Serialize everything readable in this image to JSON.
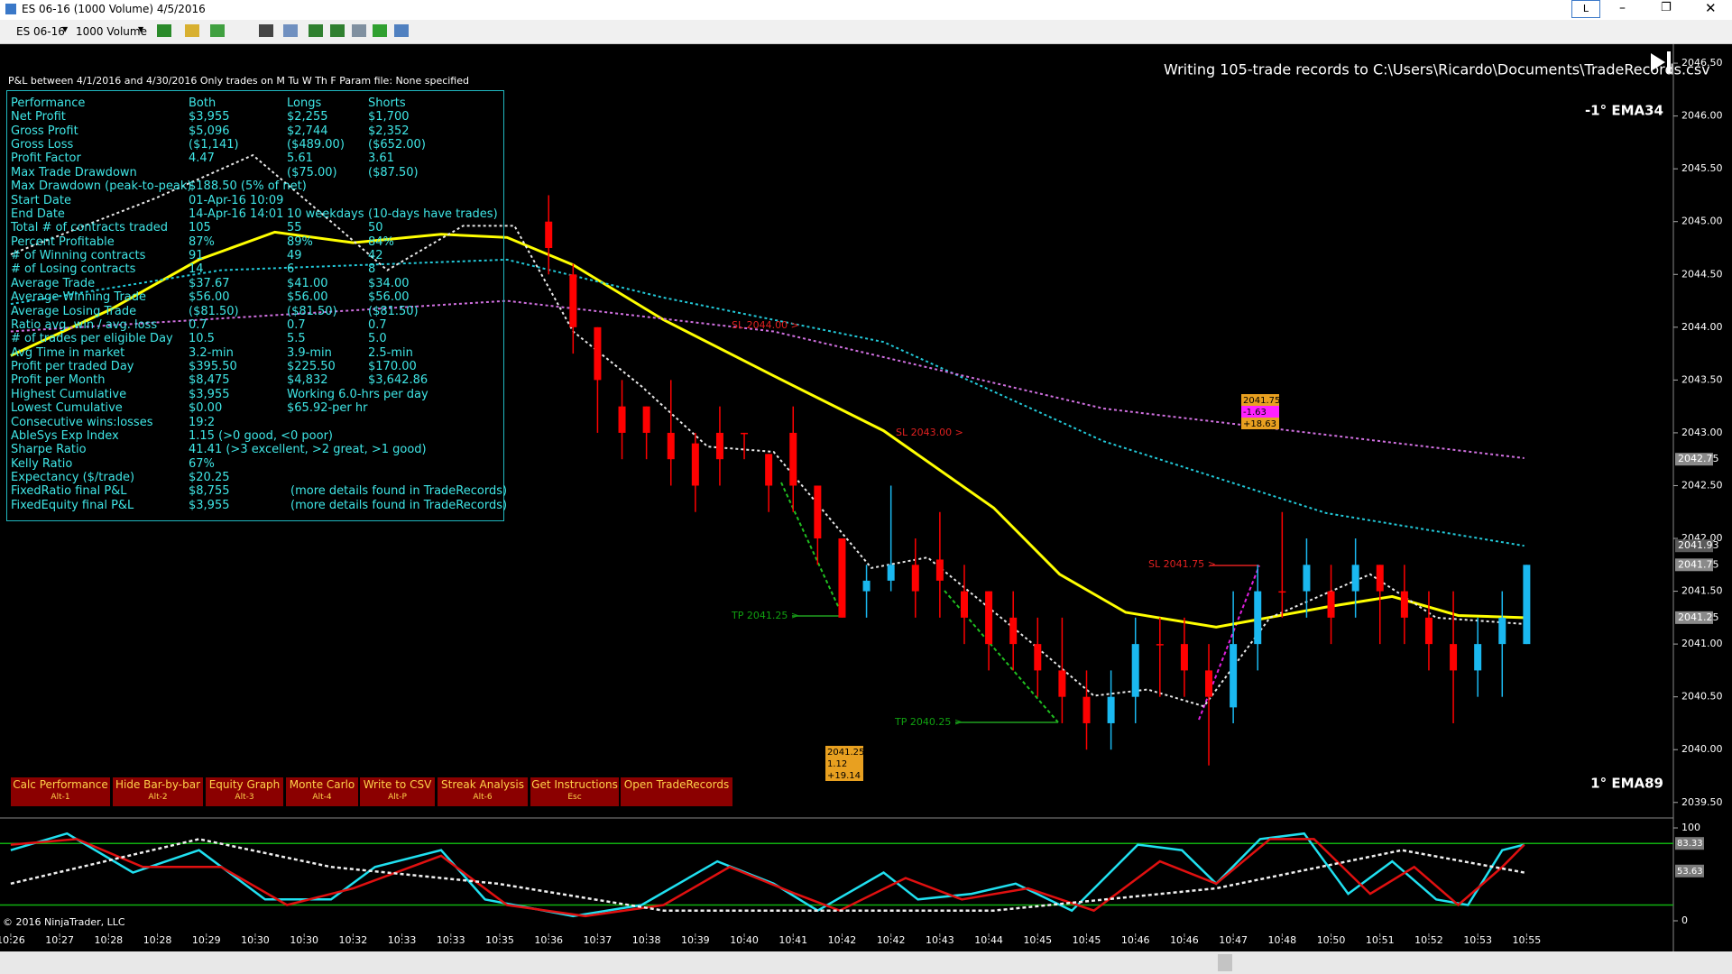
{
  "window": {
    "title": "ES 06-16 (1000 Volume)  4/5/2016",
    "instrument": "ES 06-16",
    "interval": "1000 Volume",
    "button": "L"
  },
  "header": "P&L between 4/1/2016 and 4/30/2016  Only trades on M Tu W Th F   Param file: None specified",
  "message": "Writing 105-trade records to C:\\Users\\Ricardo\\Documents\\TradeRecords.csv",
  "copyright": "© 2016 NinjaTrader, LLC",
  "table": {
    "rows": [
      [
        "Performance",
        "Both",
        "Longs",
        "Shorts"
      ],
      [
        "Net Profit",
        "$3,955",
        "$2,255",
        "$1,700"
      ],
      [
        "Gross Profit",
        "$5,096",
        "$2,744",
        "$2,352"
      ],
      [
        "Gross Loss",
        "($1,141)",
        "($489.00)",
        "($652.00)"
      ],
      [
        "Profit Factor",
        "4.47",
        "5.61",
        "3.61"
      ],
      [
        "Max Trade Drawdown",
        null,
        "($75.00)",
        "($87.50)"
      ],
      [
        "Max Drawdown (peak-to-peak)",
        "$188.50 (5% of net)"
      ],
      [
        "Start Date",
        "01-Apr-16 10:09"
      ],
      [
        "End Date",
        "14-Apr-16 14:01",
        "10 weekdays",
        "(10-days have trades)"
      ],
      [
        "Total # of contracts traded",
        "105",
        "55",
        "50"
      ],
      [
        "Percent Profitable",
        "87%",
        "89%",
        "84%"
      ],
      [
        "# of Winning contracts",
        "91",
        "49",
        "42"
      ],
      [
        "# of Losing contracts",
        "14",
        "6",
        "8"
      ],
      [
        "Average Trade",
        "$37.67",
        "$41.00",
        "$34.00"
      ],
      [
        "Average Winning Trade",
        "$56.00",
        "$56.00",
        "$56.00"
      ],
      [
        "Average Losing Trade",
        "($81.50)",
        "($81.50)",
        "($81.50)"
      ],
      [
        "Ratio avg. win / avg. loss",
        "0.7",
        "0.7",
        "0.7"
      ],
      [
        "# of trades per eligible Day",
        "10.5",
        "5.5",
        "5.0"
      ],
      [
        "Avg Time in market",
        "3.2-min",
        "3.9-min",
        "2.5-min"
      ],
      [
        "Profit per traded Day",
        "$395.50",
        "$225.50",
        "$170.00"
      ],
      [
        "Profit per Month",
        "$8,475",
        "$4,832",
        "$3,642.86"
      ],
      [
        "Highest Cumulative",
        "$3,955",
        "Working 6.0-hrs per day"
      ],
      [
        "Lowest Cumulative",
        "$0.00",
        "$65.92-per hr"
      ],
      [
        "Consecutive wins:losses",
        "19:2"
      ],
      [
        "AbleSys Exp Index",
        "1.15 (>0 good, <0 poor)"
      ],
      [
        "Sharpe Ratio",
        "41.41 (>3 excellent, >2 great, >1 good)"
      ],
      [
        "Kelly Ratio",
        "67%"
      ],
      [
        "Expectancy ($/trade)",
        "$20.25"
      ],
      [
        "FixedRatio final P&L",
        "$8,755",
        "(more details found in TradeRecords)"
      ],
      [
        "FixedEquity final P&L",
        "$3,955",
        "(more details found in TradeRecords)"
      ]
    ]
  },
  "buttons": [
    {
      "label": "Calc Performance",
      "shortcut": "Alt-1"
    },
    {
      "label": "Hide Bar-by-bar",
      "shortcut": "Alt-2"
    },
    {
      "label": "Equity Graph",
      "shortcut": "Alt-3"
    },
    {
      "label": "Monte Carlo",
      "shortcut": "Alt-4"
    },
    {
      "label": "Write to CSV",
      "shortcut": "Alt-P"
    },
    {
      "label": "Streak Analysis",
      "shortcut": "Alt-6"
    },
    {
      "label": "Get Instructions",
      "shortcut": "Esc"
    },
    {
      "label": "Open TradeRecords"
    }
  ],
  "annotations": {
    "ema_top": "-1° EMA34",
    "ema_bottom": "1° EMA89",
    "orders": [
      "SL 2044.00 >",
      "SL 2043.00 >",
      "SL 2041.75 >",
      "TP 2041.25 >",
      "TP 2040.25 >"
    ],
    "box_exit": [
      "2041.75",
      "-1.63",
      "+18.63"
    ],
    "box_entry": [
      "2041.25",
      "1.12",
      "+19.14"
    ]
  },
  "chart_data": {
    "type": "candlestick",
    "xlim": [
      -22.44,
      46.0
    ],
    "xticks": [
      {
        "value": -22,
        "label": "10:26"
      },
      {
        "value": -20,
        "label": "10:27"
      },
      {
        "value": -18,
        "label": "10:28"
      },
      {
        "value": -16,
        "label": "10:28"
      },
      {
        "value": -14,
        "label": "10:29"
      },
      {
        "value": -12,
        "label": "10:30"
      },
      {
        "value": -10,
        "label": "10:30"
      },
      {
        "value": -8,
        "label": "10:32"
      },
      {
        "value": -6,
        "label": "10:33"
      },
      {
        "value": -4,
        "label": "10:33"
      },
      {
        "value": -2,
        "label": "10:35"
      },
      {
        "value": 0,
        "label": "10:36"
      },
      {
        "value": 2,
        "label": "10:37"
      },
      {
        "value": 4,
        "label": "10:38"
      },
      {
        "value": 6,
        "label": "10:39"
      },
      {
        "value": 8,
        "label": "10:40"
      },
      {
        "value": 10,
        "label": "10:41"
      },
      {
        "value": 12,
        "label": "10:42"
      },
      {
        "value": 14,
        "label": "10:42"
      },
      {
        "value": 16,
        "label": "10:43"
      },
      {
        "value": 18,
        "label": "10:44"
      },
      {
        "value": 20,
        "label": "10:45"
      },
      {
        "value": 22,
        "label": "10:45"
      },
      {
        "value": 24,
        "label": "10:46"
      },
      {
        "value": 26,
        "label": "10:46"
      },
      {
        "value": 28,
        "label": "10:47"
      },
      {
        "value": 30,
        "label": "10:48"
      },
      {
        "value": 32,
        "label": "10:50"
      },
      {
        "value": 34,
        "label": "10:51"
      },
      {
        "value": 36,
        "label": "10:52"
      },
      {
        "value": 38,
        "label": "10:53"
      },
      {
        "value": 40,
        "label": "10:55"
      }
    ],
    "ylim": [
      2039.37,
      2046.68
    ],
    "yticks": [
      {
        "value": 2046.5,
        "label": "2046.50"
      },
      {
        "value": 2046,
        "label": "2046.00"
      },
      {
        "value": 2045.5,
        "label": "2045.50"
      },
      {
        "value": 2045,
        "label": "2045.00"
      },
      {
        "value": 2044.5,
        "label": "2044.50"
      },
      {
        "value": 2044,
        "label": "2044.00"
      },
      {
        "value": 2043.5,
        "label": "2043.50"
      },
      {
        "value": 2043,
        "label": "2043.00"
      },
      {
        "value": 2042.5,
        "label": "2042.50"
      },
      {
        "value": 2042,
        "label": "2042.00"
      },
      {
        "value": 2041.5,
        "label": "2041.50"
      },
      {
        "value": 2041,
        "label": "2041.00"
      },
      {
        "value": 2040.5,
        "label": "2040.50"
      },
      {
        "value": 2040,
        "label": "2040.00"
      },
      {
        "value": 2039.5,
        "label": "2039.50"
      }
    ],
    "up_color": "#1ab8f0",
    "down_color": "#ff0000",
    "open": [
      2045.0,
      2044.5,
      2044.0,
      2043.25,
      2043.25,
      2043.0,
      2042.9,
      2043.0,
      2043.0,
      2042.8,
      2043.0,
      2042.5,
      2042.0,
      2041.5,
      2041.6,
      2041.75,
      2041.8,
      2041.5,
      2041.5,
      2041.25,
      2041.0,
      2040.75,
      2040.5,
      2040.25,
      2040.5,
      2041.0,
      2041.0,
      2040.75,
      2040.4,
      2041.0,
      2041.5,
      2041.5,
      2041.5,
      2041.5,
      2041.75,
      2041.5,
      2041.25,
      2041.0,
      2040.75,
      2041.0,
      2041.0
    ],
    "high": [
      2045.25,
      2044.6,
      2044.0,
      2043.5,
      2043.25,
      2043.5,
      2043.0,
      2043.25,
      2043.0,
      2042.8,
      2043.25,
      2042.5,
      2042.0,
      2041.75,
      2042.5,
      2042.0,
      2042.25,
      2041.75,
      2041.5,
      2041.5,
      2041.25,
      2041.25,
      2040.75,
      2040.75,
      2041.25,
      2041.25,
      2041.25,
      2041.0,
      2041.5,
      2041.75,
      2042.25,
      2042.0,
      2041.75,
      2042.0,
      2041.75,
      2041.75,
      2041.5,
      2041.5,
      2041.25,
      2041.5,
      2041.75
    ],
    "low": [
      2044.5,
      2043.75,
      2043.0,
      2042.75,
      2042.75,
      2042.5,
      2042.25,
      2042.5,
      2042.75,
      2042.25,
      2042.25,
      2041.75,
      2041.25,
      2041.25,
      2041.5,
      2041.25,
      2041.25,
      2041.0,
      2040.75,
      2040.75,
      2040.5,
      2040.25,
      2040.0,
      2040.0,
      2040.25,
      2040.5,
      2040.5,
      2039.85,
      2040.25,
      2040.75,
      2041.25,
      2041.25,
      2041.0,
      2041.25,
      2041.0,
      2041.0,
      2040.75,
      2040.25,
      2040.5,
      2040.5,
      2041.0
    ],
    "close": [
      2044.75,
      2044.0,
      2043.5,
      2043.0,
      2043.0,
      2042.75,
      2042.5,
      2042.75,
      2043.0,
      2042.5,
      2042.5,
      2042.0,
      2041.25,
      2041.6,
      2041.75,
      2041.5,
      2041.6,
      2041.25,
      2041.0,
      2041.0,
      2040.75,
      2040.5,
      2040.25,
      2040.5,
      2041.0,
      2041.0,
      2040.75,
      2040.5,
      2041.0,
      2041.5,
      2041.5,
      2041.75,
      2041.25,
      2041.75,
      2041.5,
      2041.25,
      2041.0,
      2040.75,
      2041.0,
      2041.25,
      2041.75
    ],
    "lines": [
      {
        "color": "#ffff00",
        "dash": false,
        "width": 3,
        "x": [
          -22,
          -17.9,
          -14.3,
          -11.2,
          -8,
          -4.4,
          -1.7,
          1,
          4.7,
          9.2,
          13.7,
          18.2,
          20.9,
          23.6,
          27.3,
          31.8,
          34.5,
          37.2,
          39.9
        ],
        "values": [
          2043.73,
          2044.17,
          2044.64,
          2044.9,
          2044.8,
          2044.88,
          2044.85,
          2044.59,
          2044.07,
          2043.54,
          2043.02,
          2042.29,
          2041.66,
          2041.3,
          2041.16,
          2041.35,
          2041.45,
          2041.27,
          2041.25
        ]
      },
      {
        "color": "#22c8d8",
        "dash": true,
        "width": 2,
        "x": [
          -22,
          -13.4,
          -1.7,
          4.7,
          13.7,
          22.7,
          31.8,
          39.9
        ],
        "values": [
          2044.22,
          2044.54,
          2044.64,
          2044.28,
          2043.86,
          2042.92,
          2042.24,
          2041.93
        ]
      },
      {
        "color": "#d070e0",
        "dash": true,
        "width": 2,
        "x": [
          -22,
          -1.7,
          9.2,
          22.7,
          39.9
        ],
        "values": [
          2043.96,
          2044.25,
          2043.96,
          2043.23,
          2042.76
        ]
      },
      {
        "color": "#e8e8e8",
        "dash": true,
        "width": 2,
        "x": [
          -22,
          -16.1,
          -12.1,
          -8.9,
          -6.6,
          -3.5,
          -1.4,
          1,
          3.8,
          6.5,
          9.2,
          13.2,
          15.5,
          19.6,
          22.3,
          24.5,
          26.8,
          29.5,
          33.6,
          36.3,
          39.9
        ],
        "values": [
          2044.69,
          2045.22,
          2045.63,
          2045.0,
          2044.54,
          2044.96,
          2044.96,
          2043.96,
          2043.44,
          2042.87,
          2042.82,
          2041.72,
          2041.82,
          2041.04,
          2040.51,
          2040.57,
          2040.41,
          2041.25,
          2041.66,
          2041.25,
          2041.19
        ]
      }
    ],
    "price_tags": [
      {
        "value": 2042.75,
        "color": "#8a8a8a"
      },
      {
        "value": 2041.93,
        "color": "#5a5a5a"
      },
      {
        "value": 2041.75,
        "color": "#8a8a8a"
      },
      {
        "value": 2041.25,
        "color": "#8a8a8a"
      }
    ],
    "oscillator": {
      "ylim": [
        -13.6,
        107.8
      ],
      "yticks": [
        0,
        100
      ],
      "levels": [
        83.33,
        17
      ],
      "tags": [
        83.33,
        53.63
      ],
      "series": [
        {
          "color": "#20e0f0",
          "dash": false,
          "x": [
            -22,
            -19.7,
            -17,
            -14.3,
            -11.6,
            -8.9,
            -7.1,
            -4.4,
            -2.6,
            1,
            3.8,
            6.9,
            9.2,
            11,
            13.7,
            15.1,
            17.3,
            19.1,
            21.4,
            24.1,
            25.9,
            27.3,
            29.1,
            30.9,
            32.7,
            34.5,
            36.3,
            37.6,
            39,
            39.9
          ],
          "values": [
            76,
            94,
            52,
            76,
            23,
            23,
            58,
            76,
            23,
            5,
            17,
            64,
            40,
            11,
            52,
            23,
            29,
            40,
            11,
            82,
            76,
            40,
            88,
            94,
            29,
            64,
            23,
            17,
            76,
            82
          ]
        },
        {
          "color": "#e01010",
          "dash": false,
          "x": [
            -22,
            -19.3,
            -16.6,
            -13.4,
            -10.7,
            -8,
            -4.4,
            -1.7,
            1.5,
            4.7,
            7.4,
            10.1,
            11.9,
            14.6,
            16.9,
            19.6,
            22.3,
            25,
            27.3,
            29.5,
            31.3,
            33.6,
            35.4,
            37.2,
            39,
            39.9
          ],
          "values": [
            82,
            88,
            58,
            58,
            17,
            35,
            70,
            17,
            5,
            17,
            58,
            29,
            11,
            46,
            23,
            35,
            11,
            64,
            40,
            88,
            88,
            29,
            58,
            17,
            58,
            82
          ]
        },
        {
          "color": "#f0f0f0",
          "dash": true,
          "x": [
            -22,
            -14.3,
            -8.9,
            -2.1,
            4.7,
            18.2,
            27.3,
            34.9,
            39.9
          ],
          "values": [
            40,
            88,
            58,
            40,
            11,
            11,
            35,
            76,
            52
          ]
        }
      ]
    }
  }
}
